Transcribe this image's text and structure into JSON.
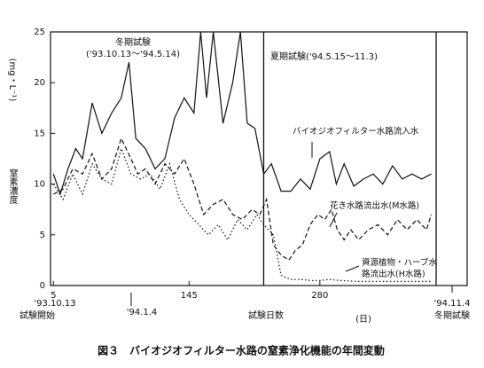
{
  "chart_data": {
    "type": "line",
    "caption": "図３　バイオジオフィルター水路の窒素浄化機能の年間変動",
    "x_label": "試験日数",
    "x_unit": "(日)",
    "y_label": "窒素濃度",
    "y_unit": "(mg・L⁻¹)",
    "xlim": [
      2,
      432
    ],
    "ylim": [
      0,
      25
    ],
    "xticks": [
      5,
      145,
      280
    ],
    "yticks": [
      0,
      5,
      10,
      15,
      20,
      25
    ],
    "period_boundaries": [
      222,
      400
    ],
    "annotations": [
      {
        "text": "冬期試験",
        "x": 83
      },
      {
        "text": "('93.10.13～'94.5.14)",
        "x": 83
      },
      {
        "text": "夏期試験('94.5.15～11.3)",
        "x": 300
      },
      {
        "text": "'93.10.13",
        "x": 5
      },
      {
        "text": "試験開始",
        "x": 5
      },
      {
        "text": "'94.1.4",
        "x": 83
      },
      {
        "text": "'94.11.4",
        "x": 400
      },
      {
        "text": "冬期試験",
        "x": 400
      }
    ],
    "series": [
      {
        "name": "バイオジオフィルター水路流入水",
        "color": "#111111",
        "style": "solid",
        "x": [
          5,
          12,
          20,
          28,
          35,
          45,
          55,
          65,
          75,
          83,
          90,
          100,
          110,
          120,
          130,
          140,
          150,
          157,
          163,
          170,
          180,
          190,
          198,
          205,
          213,
          222,
          230,
          240,
          250,
          260,
          270,
          280,
          290,
          297,
          305,
          315,
          325,
          335,
          345,
          355,
          365,
          375,
          385,
          395
        ],
        "values": [
          11,
          9,
          11.5,
          13.5,
          12.5,
          18,
          15,
          17,
          18.5,
          22,
          14.5,
          13.5,
          11.5,
          12.5,
          16.5,
          18.5,
          17,
          25,
          18.5,
          25,
          16,
          20,
          25,
          16,
          15.5,
          11,
          12,
          9.3,
          9.3,
          10.5,
          9.5,
          12.5,
          13.2,
          10,
          12,
          9.8,
          10.5,
          11,
          10,
          11.8,
          10.5,
          11,
          10.5,
          11
        ]
      },
      {
        "name": "花き水路流出水(M水路)",
        "color": "#111111",
        "style": "dashed",
        "x": [
          5,
          15,
          25,
          35,
          45,
          55,
          65,
          75,
          85,
          92,
          100,
          110,
          120,
          130,
          140,
          150,
          160,
          170,
          180,
          190,
          200,
          210,
          218,
          225,
          232,
          240,
          248,
          255,
          262,
          270,
          278,
          285,
          292,
          298,
          305,
          312,
          320,
          330,
          340,
          350,
          360,
          370,
          380,
          390,
          395
        ],
        "values": [
          9,
          9.5,
          11.5,
          11,
          13,
          10.5,
          11.5,
          14.5,
          12.5,
          11,
          11.5,
          10,
          12,
          11,
          12.5,
          10,
          7,
          8,
          8.5,
          7,
          6.5,
          7.5,
          7,
          8.5,
          4,
          3,
          2.5,
          3.5,
          4,
          6,
          7,
          6.5,
          7.5,
          5.5,
          4.5,
          5.5,
          4.5,
          5.5,
          6,
          5,
          6.5,
          5.5,
          6.5,
          5.5,
          7
        ]
      },
      {
        "name": "資源植物・ハーブ水路流出水(H水路)",
        "color": "#111111",
        "style": "dotted",
        "x": [
          5,
          15,
          25,
          35,
          45,
          55,
          65,
          75,
          85,
          95,
          105,
          115,
          125,
          135,
          145,
          155,
          165,
          175,
          185,
          195,
          205,
          215,
          222,
          232,
          240,
          250,
          260,
          270,
          280,
          290,
          300,
          320,
          340,
          360,
          380,
          395
        ],
        "values": [
          10,
          8.5,
          11,
          9,
          12,
          10.5,
          10,
          13.5,
          11,
          10.5,
          11,
          9.5,
          12,
          8.5,
          7,
          6,
          5,
          6,
          4.5,
          6.5,
          5.5,
          7,
          6,
          5,
          1,
          0.6,
          0.6,
          0.5,
          0.5,
          0.6,
          0.5,
          0.4,
          0.4,
          0.4,
          0.4,
          0.4
        ]
      }
    ]
  }
}
